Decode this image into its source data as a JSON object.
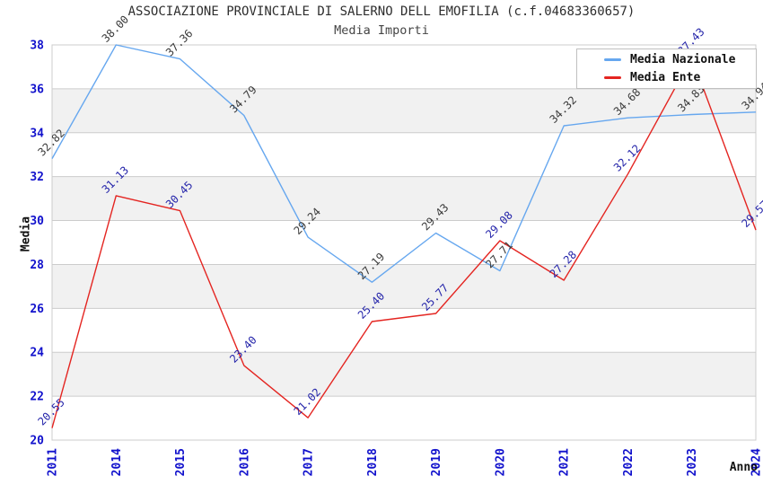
{
  "chart_data": {
    "type": "line",
    "title": "ASSOCIAZIONE PROVINCIALE DI SALERNO DELL EMOFILIA (c.f.04683360657)",
    "subtitle": "Media Importi",
    "xlabel": "Anno",
    "ylabel": "Media",
    "categories": [
      "2011",
      "2014",
      "2015",
      "2016",
      "2017",
      "2018",
      "2019",
      "2020",
      "2021",
      "2022",
      "2023",
      "2024"
    ],
    "series": [
      {
        "name": "Media Nazionale",
        "color": "#66a7ef",
        "label_color": "#3a3a3a",
        "values": [
          32.82,
          38.0,
          37.36,
          34.79,
          29.24,
          27.19,
          29.43,
          27.71,
          34.32,
          34.68,
          34.83,
          34.94
        ]
      },
      {
        "name": "Media Ente",
        "color": "#e42521",
        "label_color": "#2525aa",
        "values": [
          20.55,
          31.13,
          30.45,
          23.4,
          21.02,
          25.4,
          25.77,
          29.08,
          27.28,
          32.12,
          37.43,
          29.57
        ]
      }
    ],
    "ylim": [
      20,
      38
    ],
    "ytick_step": 2,
    "grid": true,
    "legend_position": "top-right",
    "point_label_decimals": 2,
    "colors": {
      "tick_label": "#1111cc",
      "grid_line": "#cccccc",
      "band_fill": "#f1f1f1",
      "plot_border": "#cccccc",
      "background": "#ffffff"
    }
  }
}
